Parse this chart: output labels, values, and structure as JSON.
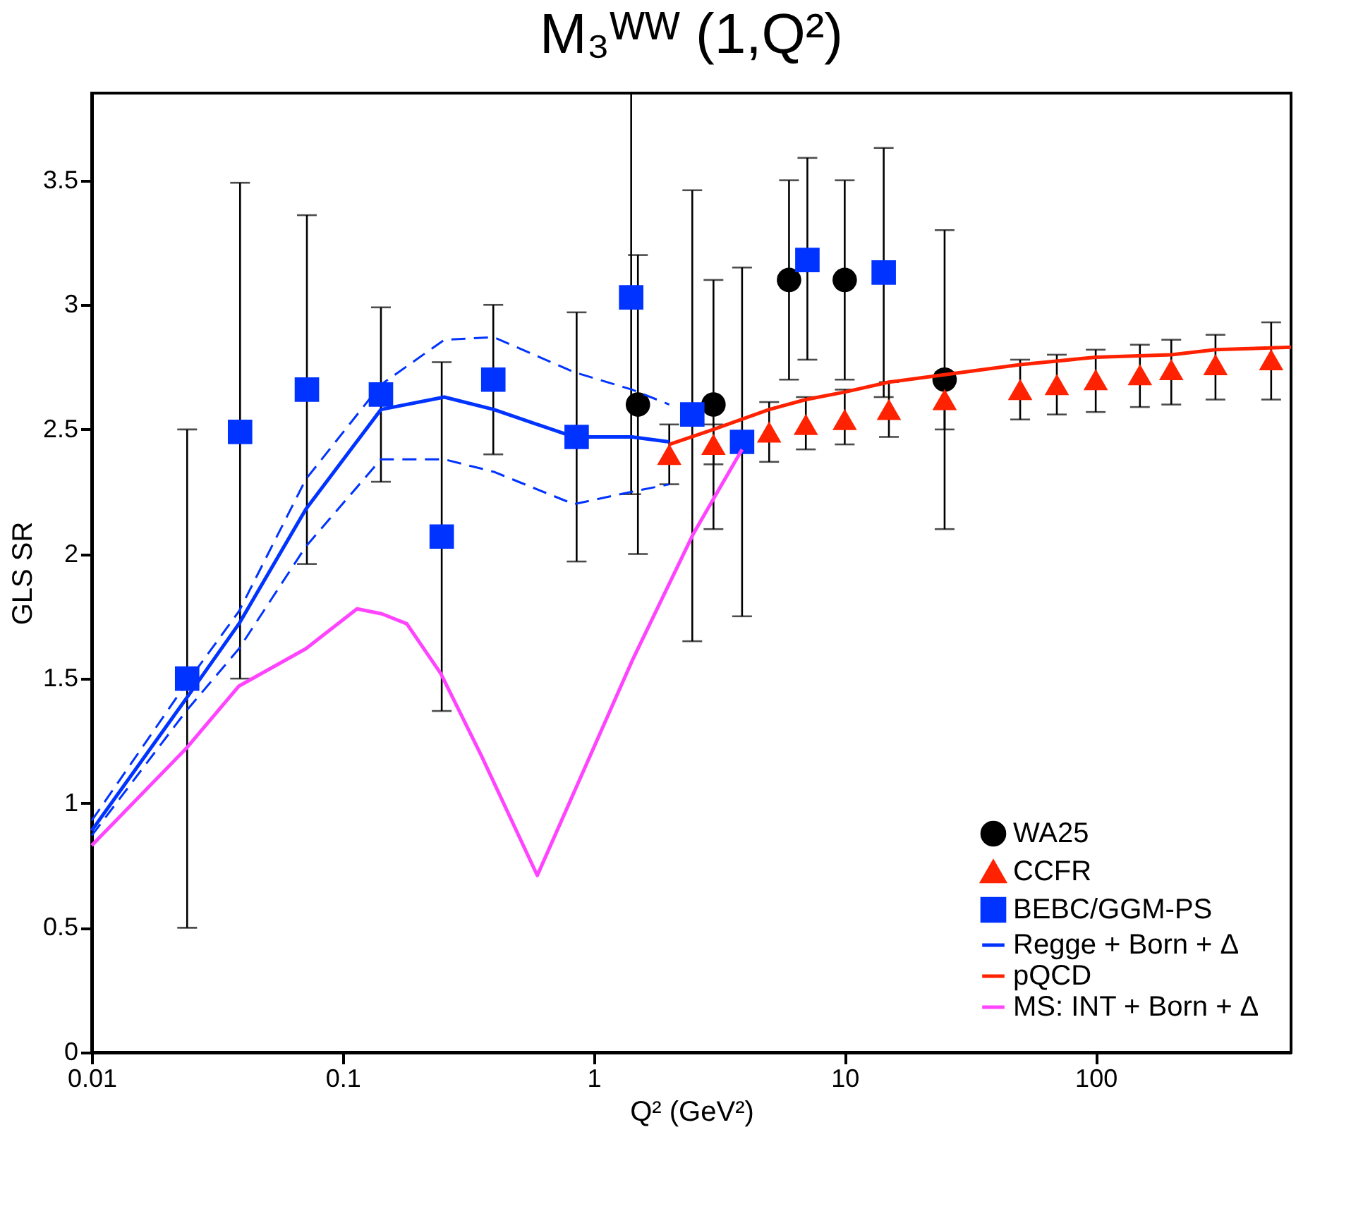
{
  "chart_data": {
    "type": "scatter",
    "title": "M₃ᵂᵂ (1,Q²)",
    "xlabel": "Q² (GeV²)",
    "ylabel": "GLS SR",
    "log": "x",
    "xlim": [
      0.01,
      600
    ],
    "xticks": [
      0.01,
      0.1,
      1,
      10,
      100
    ],
    "ylim": [
      0,
      3.85
    ],
    "yticks": [
      0,
      0.5,
      1,
      1.5,
      2,
      2.5,
      3,
      3.5
    ],
    "grid": false,
    "legend": "bottom right",
    "series": [
      {
        "name": "WA25",
        "marker": "circle",
        "color": "#000000",
        "x": [
          1.5,
          3.0,
          6.0,
          10.0,
          25.0
        ],
        "values": [
          2.6,
          2.6,
          3.1,
          3.1,
          2.7
        ],
        "errors": [
          [
            2.0,
            3.2
          ],
          [
            2.1,
            3.1
          ],
          [
            2.7,
            3.5
          ],
          [
            2.7,
            3.5
          ],
          [
            2.1,
            3.3
          ]
        ]
      },
      {
        "name": "CCFR",
        "marker": "triangle",
        "color": "#ff2200",
        "x": [
          2.0,
          3.0,
          5.0,
          7.0,
          10.0,
          15.0,
          25.0,
          50.0,
          70.0,
          100.0,
          150.0,
          200.0,
          300.0,
          500.0
        ],
        "values": [
          2.4,
          2.44,
          2.49,
          2.52,
          2.54,
          2.58,
          2.62,
          2.66,
          2.68,
          2.7,
          2.72,
          2.74,
          2.76,
          2.78
        ],
        "errors": [
          [
            2.28,
            2.52
          ],
          [
            2.36,
            2.52
          ],
          [
            2.37,
            2.61
          ],
          [
            2.42,
            2.63
          ],
          [
            2.44,
            2.66
          ],
          [
            2.47,
            2.69
          ],
          [
            2.5,
            2.73
          ],
          [
            2.54,
            2.78
          ],
          [
            2.56,
            2.8
          ],
          [
            2.57,
            2.82
          ],
          [
            2.59,
            2.84
          ],
          [
            2.6,
            2.86
          ],
          [
            2.62,
            2.88
          ],
          [
            2.62,
            2.93
          ]
        ]
      },
      {
        "name": "BEBC/GGM-PS",
        "marker": "square",
        "color": "#0033ff",
        "x": [
          0.024,
          0.039,
          0.072,
          0.142,
          0.248,
          0.398,
          0.855,
          1.41,
          2.47,
          3.9,
          7.1,
          14.3
        ],
        "values": [
          1.5,
          2.49,
          2.66,
          2.64,
          2.07,
          2.7,
          2.47,
          3.03,
          2.56,
          2.45,
          3.18,
          3.13
        ],
        "errors": [
          [
            0.5,
            2.5
          ],
          [
            1.5,
            3.49
          ],
          [
            1.96,
            3.36
          ],
          [
            2.29,
            2.99
          ],
          [
            1.37,
            2.77
          ],
          [
            2.4,
            3.0
          ],
          [
            1.97,
            2.97
          ],
          [
            2.24,
            3.85
          ],
          [
            1.65,
            3.46
          ],
          [
            1.75,
            3.15
          ],
          [
            2.78,
            3.59
          ],
          [
            2.63,
            3.63
          ]
        ]
      },
      {
        "name": "Regge + Born + Δ",
        "type": "line",
        "line_style": "solid",
        "color": "#0033ff",
        "x": [
          0.01,
          0.0238,
          0.0386,
          0.0713,
          0.142,
          0.254,
          0.4,
          0.834,
          1.42,
          2.0
        ],
        "values": [
          0.89,
          1.42,
          1.72,
          2.18,
          2.58,
          2.63,
          2.58,
          2.47,
          2.47,
          2.45
        ]
      },
      {
        "type": "line",
        "line_style": "dashed",
        "color": "#0033ff",
        "x": [
          0.01,
          0.0238,
          0.0386,
          0.0713,
          0.142,
          0.254,
          0.4,
          0.834,
          1.42,
          2.0
        ],
        "values": [
          0.93,
          1.48,
          1.77,
          2.3,
          2.68,
          2.86,
          2.87,
          2.73,
          2.66,
          2.6
        ]
      },
      {
        "type": "line",
        "line_style": "dashed",
        "color": "#0033ff",
        "x": [
          0.01,
          0.0238,
          0.0386,
          0.0713,
          0.142,
          0.254,
          0.4,
          0.834,
          1.42,
          2.0
        ],
        "values": [
          0.87,
          1.37,
          1.62,
          2.03,
          2.38,
          2.38,
          2.33,
          2.2,
          2.25,
          2.28
        ]
      },
      {
        "name": "pQCD",
        "type": "line",
        "line_style": "solid",
        "color": "#ff2200",
        "x": [
          2.0,
          3.0,
          5.0,
          7.0,
          10.0,
          15.0,
          25.0,
          50.0,
          100.0,
          200.0,
          300.0,
          600.0
        ],
        "values": [
          2.44,
          2.5,
          2.58,
          2.62,
          2.65,
          2.69,
          2.72,
          2.76,
          2.79,
          2.8,
          2.82,
          2.83
        ]
      },
      {
        "name": "MS: INT + Born + Δ",
        "type": "line",
        "line_style": "solid",
        "color": "#ff44ff",
        "x": [
          0.01,
          0.0238,
          0.0386,
          0.0713,
          0.114,
          0.143,
          0.18,
          0.246,
          0.357,
          0.596,
          1.42,
          2.49,
          3.9
        ],
        "values": [
          0.83,
          1.22,
          1.47,
          1.62,
          1.78,
          1.76,
          1.72,
          1.52,
          1.19,
          0.71,
          1.57,
          2.08,
          2.42
        ]
      }
    ]
  }
}
